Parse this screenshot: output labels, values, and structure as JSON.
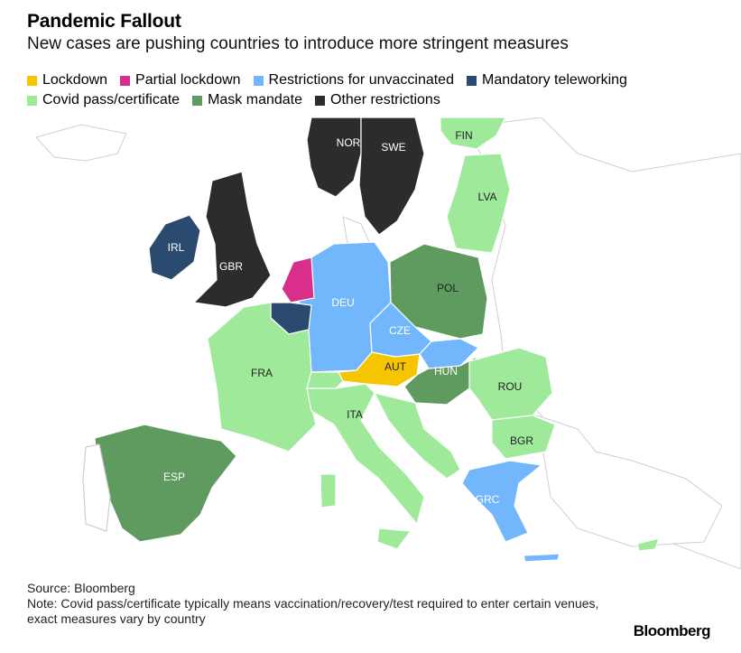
{
  "title": "Pandemic Fallout",
  "subtitle": "New cases are pushing countries to introduce more stringent measures",
  "legend": [
    {
      "label": "Lockdown",
      "color": "#f5c500"
    },
    {
      "label": "Partial lockdown",
      "color": "#d92f8a"
    },
    {
      "label": "Restrictions for unvaccinated",
      "color": "#72b6fb"
    },
    {
      "label": "Mandatory teleworking",
      "color": "#2b4a6f"
    },
    {
      "label": "Covid pass/certificate",
      "color": "#9eea9a"
    },
    {
      "label": "Mask mandate",
      "color": "#5f9a5f"
    },
    {
      "label": "Other restrictions",
      "color": "#2c2c2c"
    }
  ],
  "countries": {
    "NOR": "Other restrictions",
    "SWE": "Other restrictions",
    "FIN": "Covid pass/certificate",
    "LVA": "Covid pass/certificate",
    "IRL": "Mandatory teleworking",
    "GBR": "Other restrictions",
    "DEU": "Restrictions for unvaccinated",
    "POL": "Mask mandate",
    "CZE": "Restrictions for unvaccinated",
    "AUT": "Lockdown",
    "HUN": "Mask mandate",
    "FRA": "Covid pass/certificate",
    "ROU": "Covid pass/certificate",
    "ITA": "Covid pass/certificate",
    "BGR": "Covid pass/certificate",
    "ESP": "Mask mandate",
    "GRC": "Restrictions for unvaccinated"
  },
  "source": "Source: Bloomberg",
  "note": "Note: Covid pass/certificate typically means vaccination/recovery/test required to enter certain venues, exact measures vary by country",
  "brand": "Bloomberg"
}
